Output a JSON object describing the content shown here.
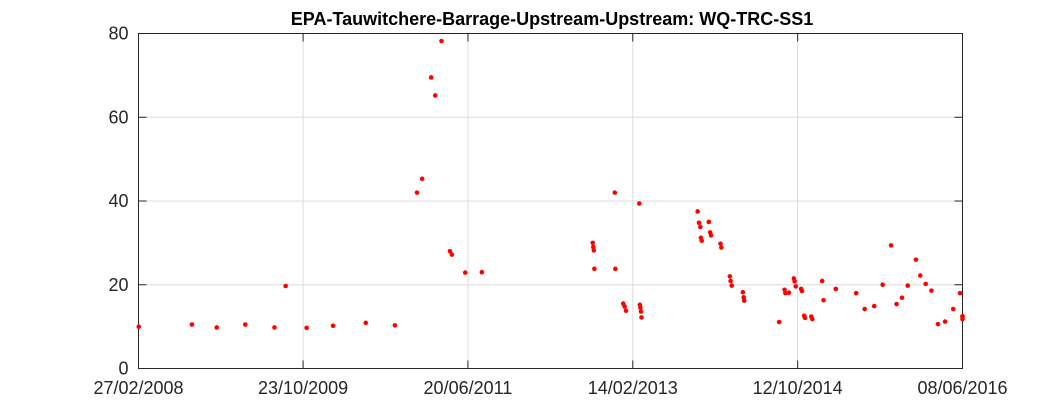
{
  "chart_data": {
    "type": "scatter",
    "title": "EPA-Tauwitchere-Barrage-Upstream-Upstream: WQ-TRC-SS1",
    "xlabel": "",
    "ylabel": "",
    "x_axis": "date",
    "xlim": [
      "2008-02-27",
      "2016-06-08"
    ],
    "ylim": [
      0,
      80
    ],
    "xticks": [
      "27/02/2008",
      "23/10/2009",
      "20/06/2011",
      "14/02/2013",
      "12/10/2014",
      "08/06/2016"
    ],
    "yticks": [
      "0",
      "20",
      "40",
      "60",
      "80"
    ],
    "grid": true,
    "marker_color": "#ff0000",
    "series": [
      {
        "points": [
          [
            "2008-02-28",
            10
          ],
          [
            "2008-09-10",
            10.5
          ],
          [
            "2008-12-10",
            9.8
          ],
          [
            "2009-03-25",
            10.5
          ],
          [
            "2009-07-10",
            9.8
          ],
          [
            "2009-08-20",
            19.7
          ],
          [
            "2009-11-05",
            9.7
          ],
          [
            "2010-02-10",
            10.2
          ],
          [
            "2010-06-10",
            10.9
          ],
          [
            "2010-09-25",
            10.3
          ],
          [
            "2010-12-15",
            42
          ],
          [
            "2011-01-03",
            45.3
          ],
          [
            "2011-02-05",
            69.5
          ],
          [
            "2011-02-20",
            65.2
          ],
          [
            "2011-03-15",
            78.2
          ],
          [
            "2011-04-15",
            28
          ],
          [
            "2011-04-22",
            27.2
          ],
          [
            "2011-06-10",
            22.9
          ],
          [
            "2011-08-10",
            23
          ],
          [
            "2012-09-20",
            30
          ],
          [
            "2012-09-22",
            29
          ],
          [
            "2012-09-24",
            28.2
          ],
          [
            "2012-09-26",
            23.8
          ],
          [
            "2012-12-10",
            42
          ],
          [
            "2012-12-12",
            23.8
          ],
          [
            "2013-01-10",
            15.5
          ],
          [
            "2013-01-15",
            14.8
          ],
          [
            "2013-01-20",
            13.8
          ],
          [
            "2013-03-10",
            39.4
          ],
          [
            "2013-03-12",
            15.2
          ],
          [
            "2013-03-14",
            14.5
          ],
          [
            "2013-03-16",
            13.6
          ],
          [
            "2013-03-18",
            12.2
          ],
          [
            "2013-10-10",
            37.5
          ],
          [
            "2013-10-15",
            34.8
          ],
          [
            "2013-10-20",
            33.8
          ],
          [
            "2013-10-22",
            31.2
          ],
          [
            "2013-10-25",
            30.5
          ],
          [
            "2013-11-20",
            35
          ],
          [
            "2013-11-25",
            32.5
          ],
          [
            "2013-11-28",
            31.8
          ],
          [
            "2014-01-02",
            29.8
          ],
          [
            "2014-01-05",
            28.9
          ],
          [
            "2014-02-05",
            22
          ],
          [
            "2014-02-08",
            20.9
          ],
          [
            "2014-02-12",
            19.8
          ],
          [
            "2014-03-25",
            18.2
          ],
          [
            "2014-03-28",
            17
          ],
          [
            "2014-03-30",
            16.2
          ],
          [
            "2014-08-05",
            11.1
          ],
          [
            "2014-08-25",
            18.8
          ],
          [
            "2014-08-28",
            18
          ],
          [
            "2014-09-10",
            18.1
          ],
          [
            "2014-09-28",
            21.5
          ],
          [
            "2014-10-01",
            20.8
          ],
          [
            "2014-10-05",
            19.6
          ],
          [
            "2014-10-25",
            19
          ],
          [
            "2014-10-28",
            18.5
          ],
          [
            "2014-11-05",
            12.6
          ],
          [
            "2014-11-08",
            12.1
          ],
          [
            "2014-12-01",
            12.4
          ],
          [
            "2014-12-05",
            11.8
          ],
          [
            "2015-01-10",
            20.9
          ],
          [
            "2015-01-15",
            16.3
          ],
          [
            "2015-03-01",
            19
          ],
          [
            "2015-05-15",
            18
          ],
          [
            "2015-06-15",
            14.2
          ],
          [
            "2015-07-20",
            14.9
          ],
          [
            "2015-08-20",
            20
          ],
          [
            "2015-09-20",
            29.4
          ],
          [
            "2015-10-10",
            15.4
          ],
          [
            "2015-10-30",
            16.9
          ],
          [
            "2015-11-20",
            19.8
          ],
          [
            "2015-12-20",
            26
          ],
          [
            "2016-01-05",
            22.2
          ],
          [
            "2016-01-25",
            20.2
          ],
          [
            "2016-02-15",
            18.6
          ],
          [
            "2016-03-10",
            10.6
          ],
          [
            "2016-04-05",
            11.2
          ],
          [
            "2016-05-05",
            14.2
          ],
          [
            "2016-05-30",
            18
          ],
          [
            "2016-06-20",
            12.5
          ],
          [
            "2016-07-20",
            12.4
          ],
          [
            "2016-08-05",
            11.8
          ]
        ]
      }
    ]
  }
}
